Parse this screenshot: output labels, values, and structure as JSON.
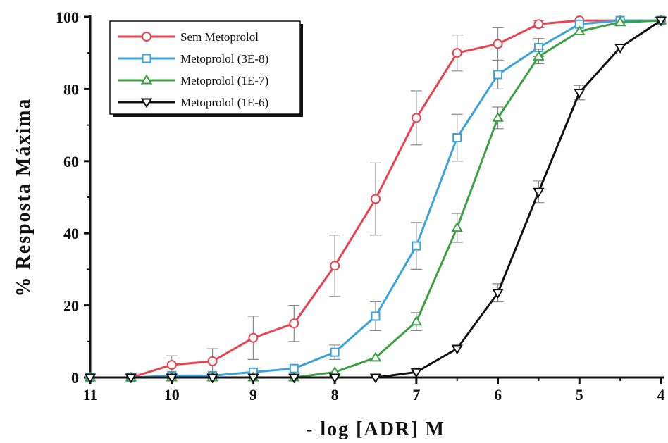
{
  "chart_data": {
    "type": "line",
    "title": "",
    "xlabel": "- log [ADR] M",
    "ylabel": "% Resposta Máxima",
    "xlim": [
      11,
      4
    ],
    "ylim": [
      0,
      100
    ],
    "x_ticks": [
      "11",
      "10",
      "9",
      "8",
      "7",
      "6",
      "5",
      "4"
    ],
    "y_ticks": [
      "0",
      "20",
      "40",
      "60",
      "80",
      "100"
    ],
    "x_tick_values": [
      11,
      10,
      9,
      8,
      7,
      6,
      5,
      4
    ],
    "y_tick_values": [
      0,
      20,
      40,
      60,
      80,
      100
    ],
    "grid": false,
    "legend_position": "top-left",
    "x": [
      11,
      10.5,
      10,
      9.5,
      9,
      8.5,
      8,
      7.5,
      7,
      6.5,
      6,
      5.5,
      5,
      4.5,
      4
    ],
    "series": [
      {
        "name": "Sem Metoprolol",
        "color": "#e8434f",
        "marker": "circle",
        "values": [
          0,
          0,
          3.5,
          4.5,
          11,
          15,
          31,
          49.5,
          72,
          90,
          92.5,
          98,
          99,
          99,
          99
        ],
        "errors": [
          0,
          0,
          2.5,
          3.5,
          6,
          5,
          8.5,
          10,
          7.5,
          5,
          4.5,
          1,
          0,
          0,
          0
        ]
      },
      {
        "name": "Metoprolol (3E-8)",
        "color": "#3aa3db",
        "marker": "square",
        "values": [
          0,
          0,
          0.5,
          0.5,
          1.5,
          2.5,
          7,
          17,
          36.5,
          66.5,
          84,
          91.5,
          98,
          99,
          99
        ],
        "errors": [
          0,
          0,
          0,
          0,
          0,
          0,
          2,
          4,
          6.5,
          6.5,
          4,
          2.5,
          0,
          0,
          0
        ]
      },
      {
        "name": "Metoprolol (1E-7)",
        "color": "#3ea043",
        "marker": "triangle-up",
        "values": [
          0,
          0,
          0,
          0,
          0,
          0,
          1.5,
          5.5,
          15.5,
          41.5,
          72,
          89,
          96,
          98.5,
          99
        ],
        "errors": [
          0,
          0,
          0,
          0,
          0,
          0,
          0,
          0,
          2.5,
          4,
          3,
          2,
          0,
          0,
          0
        ]
      },
      {
        "name": "Metoprolol (1E-6)",
        "color": "#111111",
        "marker": "triangle-down",
        "values": [
          0,
          0,
          0,
          0,
          0,
          0,
          0,
          0,
          1.5,
          8,
          23.5,
          51.5,
          79,
          91.5,
          99
        ],
        "errors": [
          0,
          0,
          0,
          0,
          0,
          0,
          0,
          0,
          0,
          0,
          2.5,
          3,
          2,
          0,
          0
        ]
      }
    ]
  }
}
